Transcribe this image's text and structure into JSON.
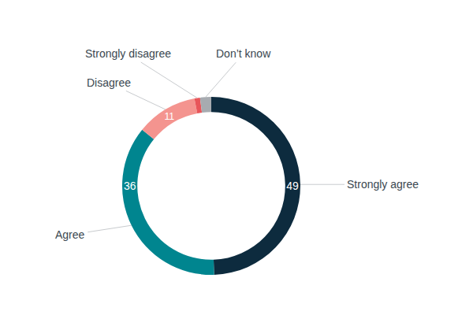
{
  "chart_data": {
    "type": "pie",
    "categories": [
      "Strongly agree",
      "Agree",
      "Disagree",
      "Strongly disagree",
      "Don’t know"
    ],
    "values": [
      49,
      36,
      11,
      1,
      2
    ],
    "value_labels": [
      "49",
      "36",
      "11",
      null,
      null
    ],
    "data_labels": true,
    "colors": [
      "#0d2b3e",
      "#00858f",
      "#f4948f",
      "#e8565a",
      "#a7abb0"
    ]
  }
}
